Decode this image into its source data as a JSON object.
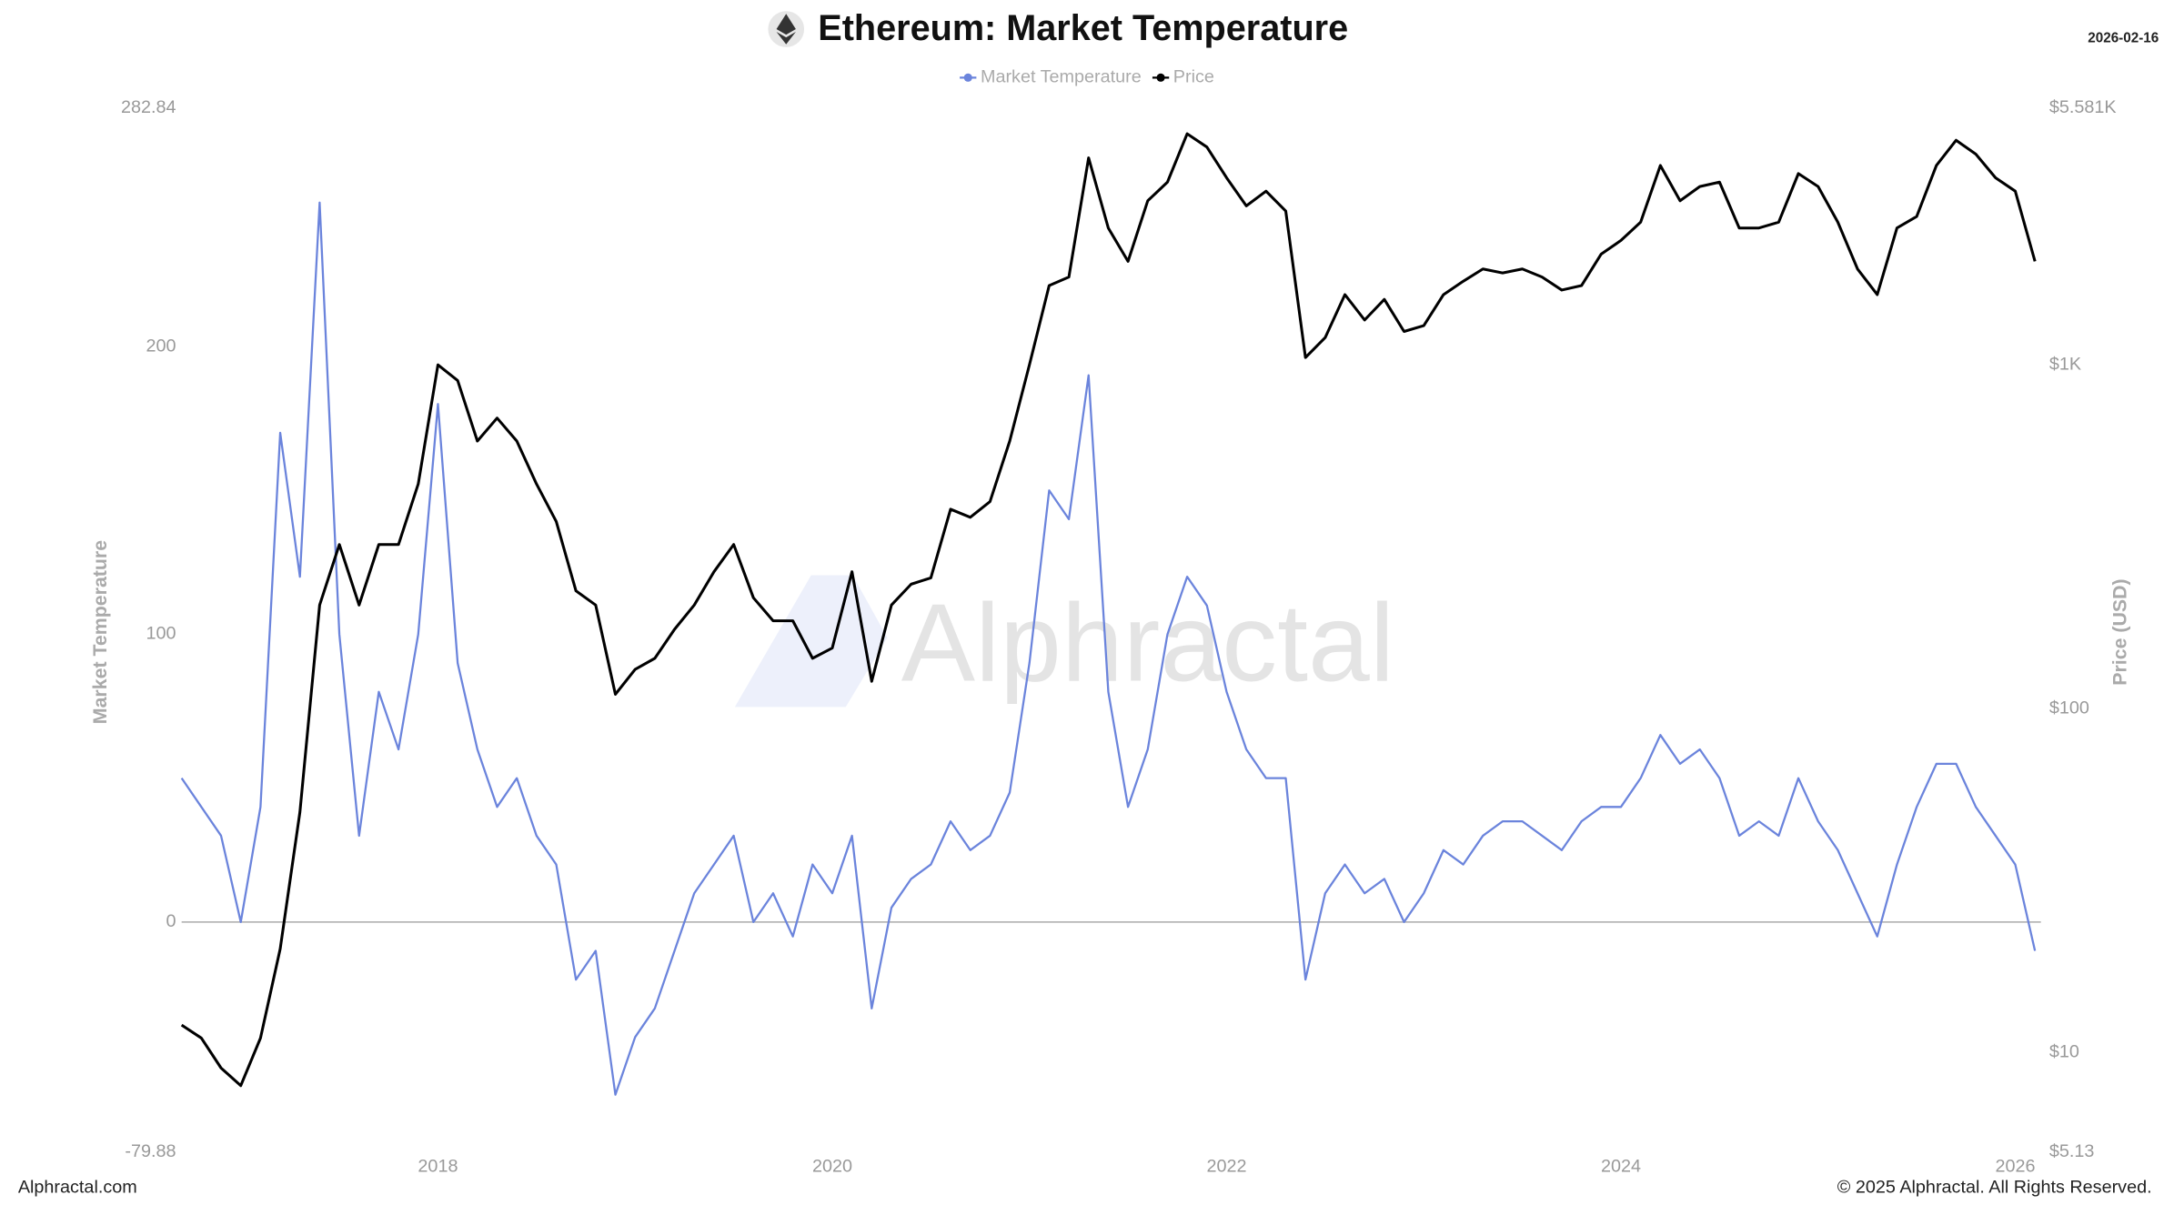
{
  "chart_data": {
    "type": "line",
    "title": "Ethereum: Market Temperature",
    "date": "2026-02-16",
    "y_label": "Market Temperature",
    "y2_label": "Price (USD)",
    "watermark": "Alphractal",
    "footer_left": "Alphractal.com",
    "footer_right": "© 2025 Alphractal. All Rights Reserved.",
    "xlim": [
      2016.7,
      2026.13
    ],
    "xticks": [
      2018,
      2020,
      2022,
      2024,
      2026
    ],
    "ylim": [
      -79.88,
      282.84
    ],
    "yticks": [
      -79.88,
      0,
      100,
      200,
      282.84
    ],
    "y2lim": [
      5.13,
      5581
    ],
    "y2ticks": [
      {
        "value": 5.13,
        "label": "$5.13"
      },
      {
        "value": 10,
        "label": "$10"
      },
      {
        "value": 100,
        "label": "$100"
      },
      {
        "value": 1000,
        "label": "$1K"
      },
      {
        "value": 5581,
        "label": "$5.581K"
      }
    ],
    "y2_log": true,
    "x": [
      2016.7,
      2016.8,
      2016.9,
      2017.0,
      2017.1,
      2017.2,
      2017.3,
      2017.4,
      2017.5,
      2017.6,
      2017.7,
      2017.8,
      2017.9,
      2018.0,
      2018.1,
      2018.2,
      2018.3,
      2018.4,
      2018.5,
      2018.6,
      2018.7,
      2018.8,
      2018.9,
      2019.0,
      2019.1,
      2019.2,
      2019.3,
      2019.4,
      2019.5,
      2019.6,
      2019.7,
      2019.8,
      2019.9,
      2020.0,
      2020.1,
      2020.2,
      2020.3,
      2020.4,
      2020.5,
      2020.6,
      2020.7,
      2020.8,
      2020.9,
      2021.0,
      2021.1,
      2021.2,
      2021.3,
      2021.4,
      2021.5,
      2021.6,
      2021.7,
      2021.8,
      2021.9,
      2022.0,
      2022.1,
      2022.2,
      2022.3,
      2022.4,
      2022.5,
      2022.6,
      2022.7,
      2022.8,
      2022.9,
      2023.0,
      2023.1,
      2023.2,
      2023.3,
      2023.4,
      2023.5,
      2023.6,
      2023.7,
      2023.8,
      2023.9,
      2024.0,
      2024.1,
      2024.2,
      2024.3,
      2024.4,
      2024.5,
      2024.6,
      2024.7,
      2024.8,
      2024.9,
      2025.0,
      2025.1,
      2025.2,
      2025.3,
      2025.4,
      2025.5,
      2025.6,
      2025.7,
      2025.8,
      2025.9,
      2026.0,
      2026.1
    ],
    "series": [
      {
        "name": "Market Temperature",
        "color": "#6b84dc",
        "values": [
          50,
          40,
          30,
          0,
          40,
          170,
          120,
          250,
          100,
          30,
          80,
          60,
          100,
          180,
          90,
          60,
          40,
          50,
          30,
          20,
          -20,
          -10,
          -60,
          -40,
          -30,
          -10,
          10,
          20,
          30,
          0,
          10,
          -5,
          20,
          10,
          30,
          -30,
          5,
          15,
          20,
          35,
          25,
          30,
          45,
          90,
          150,
          140,
          190,
          80,
          40,
          60,
          100,
          120,
          110,
          80,
          60,
          50,
          50,
          -20,
          10,
          20,
          10,
          15,
          0,
          10,
          25,
          20,
          30,
          35,
          35,
          30,
          25,
          35,
          40,
          40,
          50,
          65,
          55,
          60,
          50,
          30,
          35,
          30,
          50,
          35,
          25,
          10,
          -5,
          20,
          40,
          55,
          55,
          40,
          30,
          20,
          -10
        ]
      },
      {
        "name": "Price",
        "color": "#000000",
        "axis": "y2",
        "values": [
          12,
          11,
          9,
          8,
          11,
          20,
          50,
          200,
          300,
          200,
          300,
          300,
          450,
          1000,
          900,
          600,
          700,
          600,
          450,
          350,
          220,
          200,
          110,
          130,
          140,
          170,
          200,
          250,
          300,
          210,
          180,
          180,
          140,
          150,
          250,
          120,
          200,
          230,
          240,
          380,
          360,
          400,
          600,
          1000,
          1700,
          1800,
          4000,
          2500,
          2000,
          3000,
          3400,
          4700,
          4300,
          3500,
          2900,
          3200,
          2800,
          1050,
          1200,
          1600,
          1350,
          1550,
          1250,
          1300,
          1600,
          1750,
          1900,
          1850,
          1900,
          1800,
          1650,
          1700,
          2100,
          2300,
          2600,
          3800,
          3000,
          3300,
          3400,
          2500,
          2500,
          2600,
          3600,
          3300,
          2600,
          1900,
          1600,
          2500,
          2700,
          3800,
          4500,
          4100,
          3500,
          3200,
          2000
        ]
      }
    ]
  }
}
